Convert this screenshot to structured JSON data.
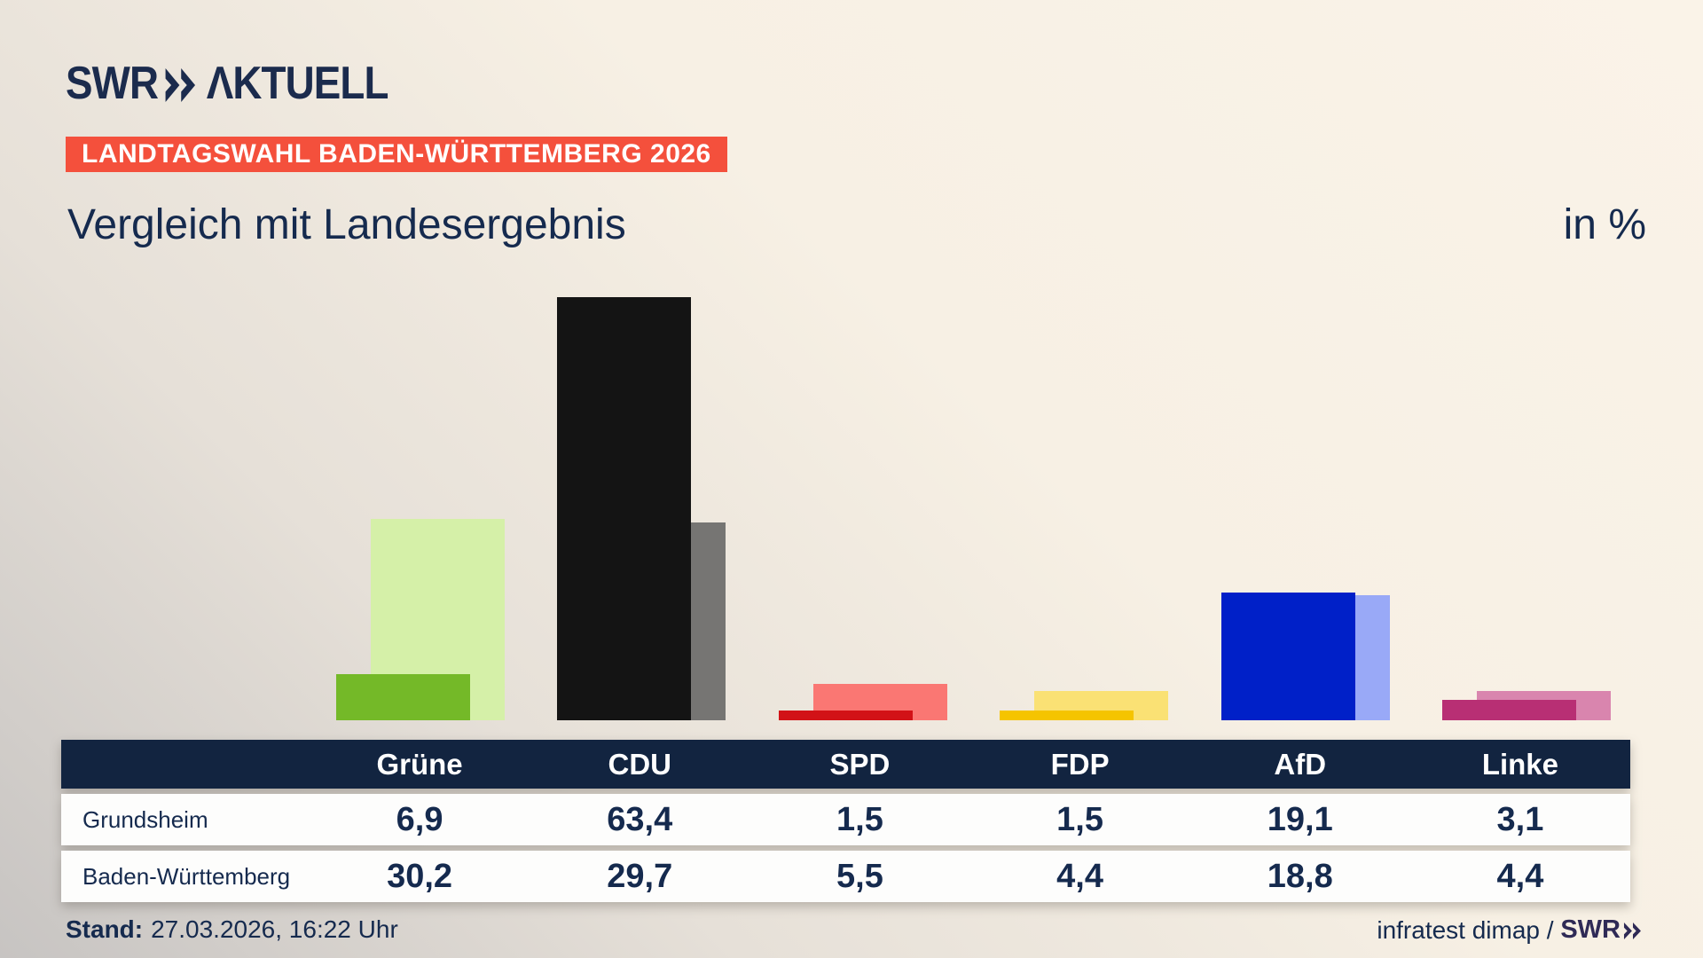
{
  "brand": {
    "logo_text": "SWR",
    "logo_suffix": "ΛKTUELL"
  },
  "header": {
    "badge_label": "LANDTAGSWAHL BADEN-WÜRTTEMBERG 2026",
    "title": "Vergleich mit Landesergebnis",
    "unit_label": "in %"
  },
  "chart_data": {
    "type": "bar",
    "categories": [
      "Grüne",
      "CDU",
      "SPD",
      "FDP",
      "AfD",
      "Linke"
    ],
    "series": [
      {
        "name": "Grundsheim",
        "values": [
          6.9,
          63.4,
          1.5,
          1.5,
          19.1,
          3.1
        ]
      },
      {
        "name": "Baden-Württemberg",
        "values": [
          30.2,
          29.7,
          5.5,
          4.4,
          18.8,
          4.4
        ]
      }
    ],
    "unit": "%",
    "ylim": [
      0,
      69
    ],
    "grid": false,
    "axis_labels": "none (values shown in table below)",
    "legend_position": "table rows below chart",
    "party_colors": [
      {
        "party": "Grüne",
        "grundsheim": "#74b928",
        "land": "#d5f0a8"
      },
      {
        "party": "CDU",
        "grundsheim": "#141414",
        "land": "#767573"
      },
      {
        "party": "SPD",
        "grundsheim": "#d21217",
        "land": "#fa7773"
      },
      {
        "party": "FDP",
        "grundsheim": "#f5c400",
        "land": "#fae174"
      },
      {
        "party": "AfD",
        "grundsheim": "#0020c8",
        "land": "#99a9f7"
      },
      {
        "party": "Linke",
        "grundsheim": "#b82f74",
        "land": "#d985ae"
      }
    ]
  },
  "table": {
    "columns": [
      "Grüne",
      "CDU",
      "SPD",
      "FDP",
      "AfD",
      "Linke"
    ],
    "rows": [
      {
        "label": "Grundsheim",
        "values": [
          "6,9",
          "63,4",
          "1,5",
          "1,5",
          "19,1",
          "3,1"
        ]
      },
      {
        "label": "Baden-Württemberg",
        "values": [
          "30,2",
          "29,7",
          "5,5",
          "4,4",
          "18,8",
          "4,4"
        ]
      }
    ]
  },
  "footer": {
    "stand_label": "Stand:",
    "stand_value": "27.03.2026, 16:22 Uhr",
    "source_text": "infratest dimap /",
    "source_logo": "SWR"
  },
  "colors": {
    "badge_background": "#f4503c",
    "text_navy": "#152a4e",
    "table_header_background": "#122440",
    "background_top_right": "#faf3e8",
    "background_bottom_left": "#c7c4c2"
  }
}
